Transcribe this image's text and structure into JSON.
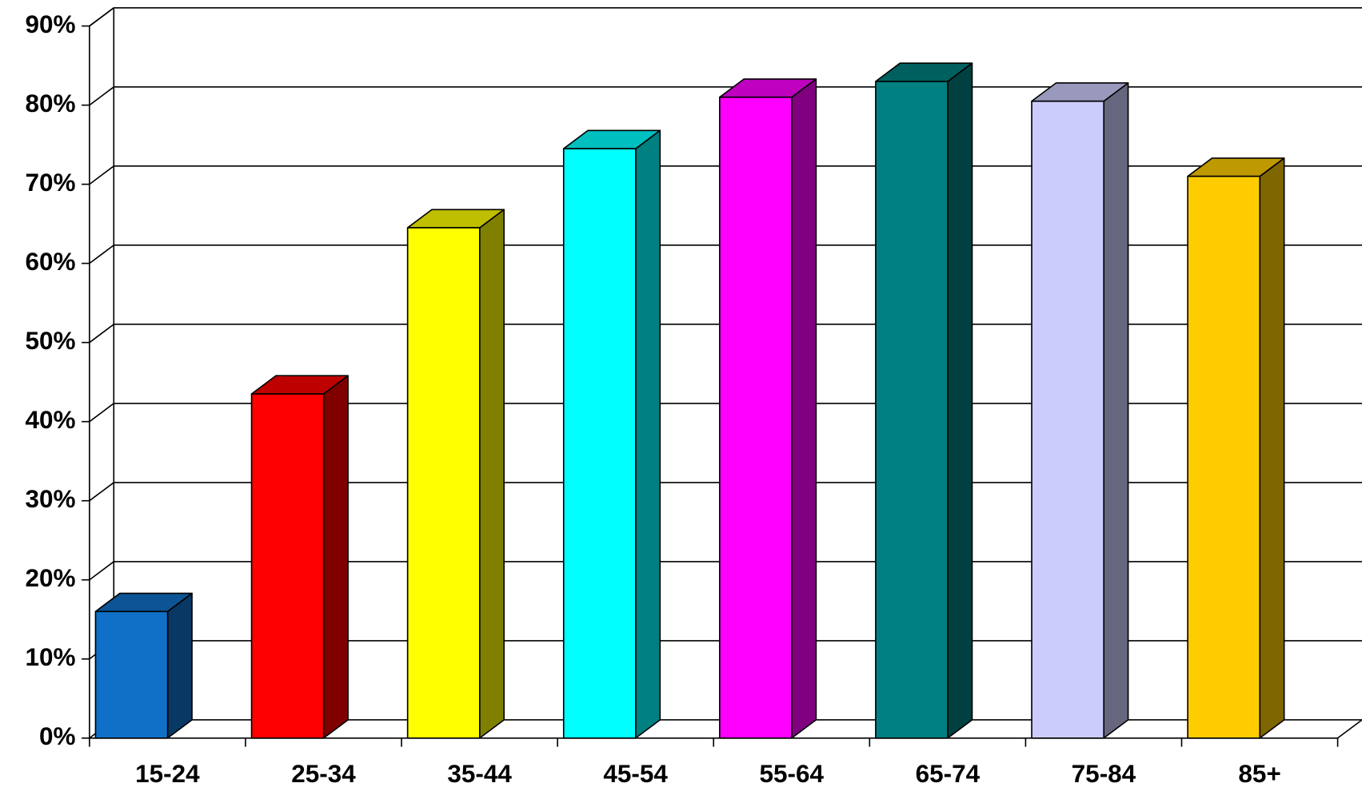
{
  "chart_data": {
    "type": "bar3d",
    "categories": [
      "15-24",
      "25-34",
      "35-44",
      "45-54",
      "55-64",
      "65-74",
      "75-84",
      "85+"
    ],
    "values": [
      16,
      43.5,
      64.5,
      74.5,
      81,
      83,
      80.5,
      71
    ],
    "colors": [
      "#1070c8",
      "#ff0000",
      "#ffff00",
      "#00ffff",
      "#ff00ff",
      "#008080",
      "#ccccfc",
      "#ffcc00"
    ],
    "ylim": [
      0,
      90
    ],
    "yticks": [
      {
        "value": 0,
        "label": "0%"
      },
      {
        "value": 10,
        "label": "10%"
      },
      {
        "value": 20,
        "label": "20%"
      },
      {
        "value": 30,
        "label": "30%"
      },
      {
        "value": 40,
        "label": "40%"
      },
      {
        "value": 50,
        "label": "50%"
      },
      {
        "value": 60,
        "label": "60%"
      },
      {
        "value": 70,
        "label": "70%"
      },
      {
        "value": 80,
        "label": "80%"
      },
      {
        "value": 90,
        "label": "90%"
      }
    ],
    "grid": true
  }
}
